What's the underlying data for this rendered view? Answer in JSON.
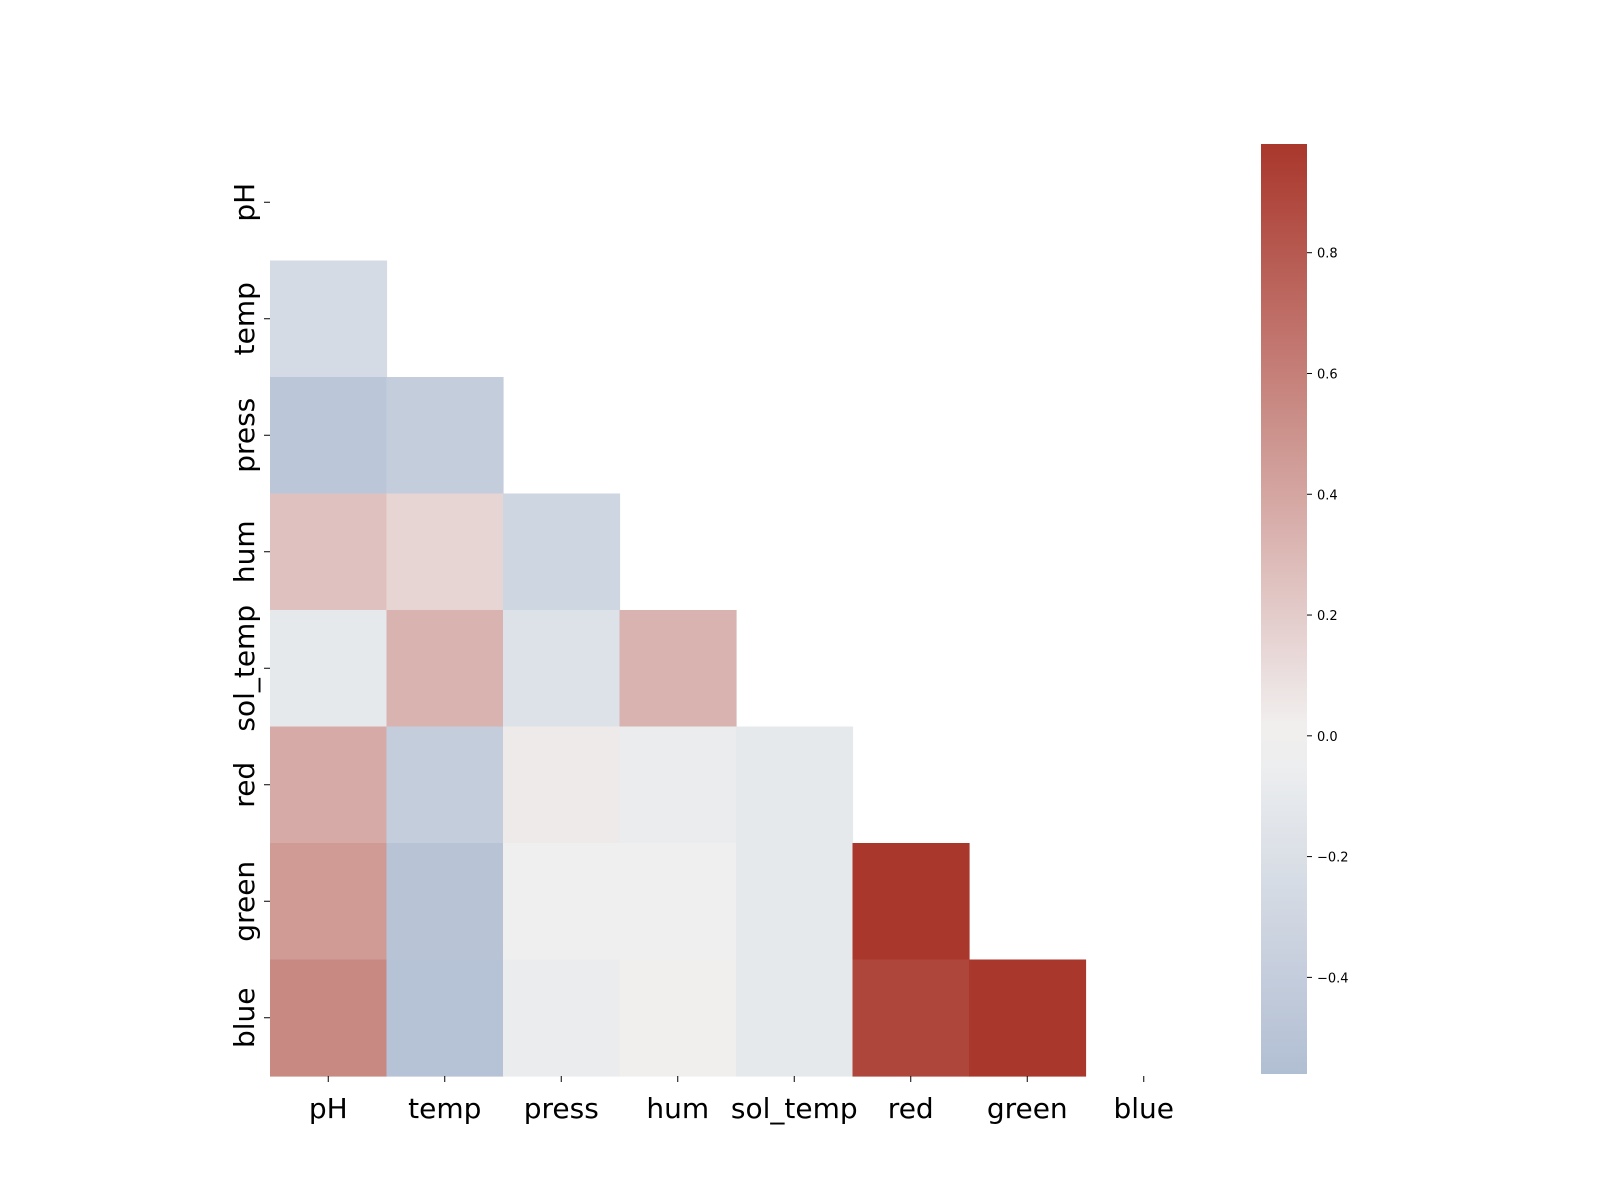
{
  "chart_data": {
    "type": "heatmap",
    "title": "",
    "xlabel": "",
    "ylabel": "",
    "variables": [
      "pH",
      "temp",
      "press",
      "hum",
      "sol_temp",
      "red",
      "green",
      "blue"
    ],
    "mask": "upper-triangle-including-diagonal",
    "matrix": [
      [
        null,
        null,
        null,
        null,
        null,
        null,
        null,
        null
      ],
      [
        -0.25,
        null,
        null,
        null,
        null,
        null,
        null,
        null
      ],
      [
        -0.48,
        -0.4,
        null,
        null,
        null,
        null,
        null,
        null
      ],
      [
        0.25,
        0.15,
        -0.31,
        null,
        null,
        null,
        null,
        null
      ],
      [
        -0.1,
        0.33,
        -0.18,
        0.33,
        null,
        null,
        null,
        null
      ],
      [
        0.37,
        -0.4,
        0.04,
        -0.07,
        -0.1,
        null,
        null,
        null
      ],
      [
        0.46,
        -0.5,
        -0.03,
        -0.03,
        -0.1,
        0.98,
        null,
        null
      ],
      [
        0.55,
        -0.52,
        -0.07,
        0.02,
        -0.1,
        0.9,
        0.98,
        null
      ]
    ],
    "colormap": {
      "name": "diverging blue-white-red",
      "low": "#8198bc",
      "mid": "#f2f2f2",
      "high": "#a9372c",
      "center": 0.0,
      "vmin": -0.56,
      "vmax": 0.98
    },
    "colorbar": {
      "ticks": [
        -0.4,
        -0.2,
        0.0,
        0.2,
        0.4,
        0.6,
        0.8
      ],
      "tick_labels": [
        "−0.4",
        "−0.2",
        "0.0",
        "0.2",
        "0.4",
        "0.6",
        "0.8"
      ]
    }
  }
}
